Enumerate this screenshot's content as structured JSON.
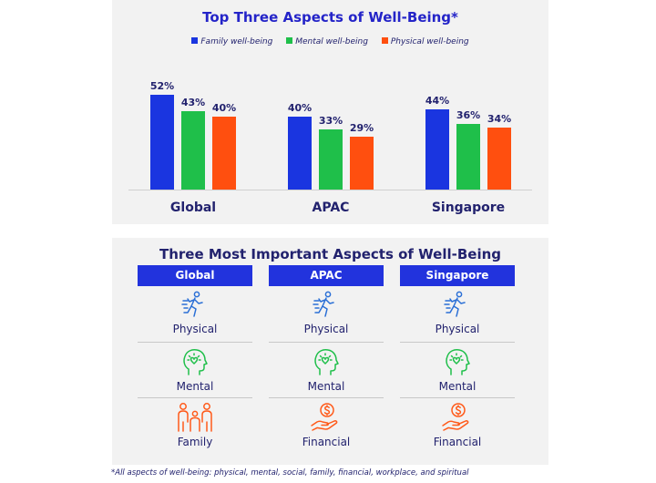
{
  "chart_data": {
    "type": "bar",
    "title": "Top Three Aspects of Well-Being*",
    "categories": [
      "Global",
      "APAC",
      "Singapore"
    ],
    "series": [
      {
        "name": "Family well-being",
        "values": [
          52,
          40,
          44
        ],
        "labels": [
          "52%",
          "40%",
          "44%"
        ],
        "color": "#1a35e0"
      },
      {
        "name": "Mental well-being",
        "values": [
          43,
          33,
          36
        ],
        "labels": [
          "43%",
          "33%",
          "36%"
        ],
        "color": "#1fbf4a"
      },
      {
        "name": "Physical well-being",
        "values": [
          40,
          29,
          34
        ],
        "labels": [
          "40%",
          "29%",
          "34%"
        ],
        "color": "#ff4f0f"
      }
    ],
    "ylim": [
      0,
      60
    ],
    "legend": "top"
  },
  "table": {
    "title": "Three Most Important Aspects of Well-Being",
    "columns": [
      {
        "header": "Global",
        "aspects": [
          {
            "label": "Physical",
            "icon": "running-person-icon"
          },
          {
            "label": "Mental",
            "icon": "head-heart-icon"
          },
          {
            "label": "Family",
            "icon": "family-icon"
          }
        ]
      },
      {
        "header": "APAC",
        "aspects": [
          {
            "label": "Physical",
            "icon": "running-person-icon"
          },
          {
            "label": "Mental",
            "icon": "head-heart-icon"
          },
          {
            "label": "Financial",
            "icon": "hand-dollar-icon"
          }
        ]
      },
      {
        "header": "Singapore",
        "aspects": [
          {
            "label": "Physical",
            "icon": "running-person-icon"
          },
          {
            "label": "Mental",
            "icon": "head-heart-icon"
          },
          {
            "label": "Financial",
            "icon": "hand-dollar-icon"
          }
        ]
      }
    ]
  },
  "colors": {
    "physical_icon": "#2a6fd6",
    "mental_icon": "#1fbf4a",
    "orange_icon": "#ff5a1a",
    "header_bg": "#2233dd"
  },
  "footnote": "*All aspects of well-being: physical, mental, social, family, financial, workplace, and spiritual"
}
